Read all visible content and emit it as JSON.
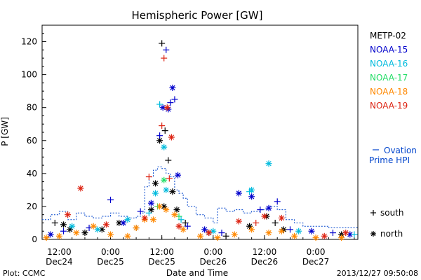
{
  "chart_data": {
    "type": "scatter",
    "title": "Hemispheric Power [GW]",
    "ylabel": "P [GW]",
    "xlabel": "Date and Time",
    "ylim": [
      0,
      130
    ],
    "xlim": [
      "2013-12-24 08:00",
      "2013-12-27 09:50"
    ],
    "y_ticks": [
      0,
      20,
      40,
      60,
      80,
      100,
      120
    ],
    "x_ticks": [
      {
        "time": "2013-12-24 12:00",
        "top": "12:00",
        "bottom": "Dec24"
      },
      {
        "time": "2013-12-25 00:00",
        "top": "0:00",
        "bottom": "Dec25"
      },
      {
        "time": "2013-12-25 12:00",
        "top": "12:00",
        "bottom": "Dec25"
      },
      {
        "time": "2013-12-26 00:00",
        "top": "0:00",
        "bottom": "Dec26"
      },
      {
        "time": "2013-12-26 12:00",
        "top": "12:00",
        "bottom": "Dec26"
      },
      {
        "time": "2013-12-27 00:00",
        "top": "0:00",
        "bottom": "Dec27"
      }
    ],
    "marker_legend": [
      {
        "symbol": "+",
        "label": "south"
      },
      {
        "symbol": "*",
        "label": "north"
      }
    ],
    "series": [
      {
        "name": "METP-02",
        "color": "#000000",
        "points": [
          [
            "2013-12-24 11:00",
            10,
            "+"
          ],
          [
            "2013-12-24 13:00",
            9,
            "*"
          ],
          [
            "2013-12-24 14:30",
            6,
            "*"
          ],
          [
            "2013-12-24 18:00",
            4,
            "*"
          ],
          [
            "2013-12-24 22:00",
            6,
            "*"
          ],
          [
            "2013-12-25 02:00",
            10,
            "*"
          ],
          [
            "2013-12-25 06:00",
            7,
            "+"
          ],
          [
            "2013-12-25 09:30",
            18,
            "*"
          ],
          [
            "2013-12-25 10:30",
            34,
            "*"
          ],
          [
            "2013-12-25 11:30",
            60,
            "*"
          ],
          [
            "2013-12-25 12:00",
            119,
            "+"
          ],
          [
            "2013-12-25 12:30",
            20,
            "*"
          ],
          [
            "2013-12-25 12:45",
            66,
            "+"
          ],
          [
            "2013-12-25 13:30",
            48,
            "+"
          ],
          [
            "2013-12-25 14:30",
            29,
            "*"
          ],
          [
            "2013-12-25 15:30",
            18,
            "*"
          ],
          [
            "2013-12-25 17:30",
            10,
            "+"
          ],
          [
            "2013-12-25 23:00",
            4,
            "*"
          ],
          [
            "2013-12-26 03:00",
            2,
            "+"
          ],
          [
            "2013-12-26 08:30",
            8,
            "*"
          ],
          [
            "2013-12-26 12:30",
            14,
            "*"
          ],
          [
            "2013-12-26 14:30",
            10,
            "+"
          ],
          [
            "2013-12-26 16:30",
            6,
            "*"
          ],
          [
            "2013-12-27 06:00",
            3,
            "*"
          ]
        ]
      },
      {
        "name": "NOAA-15",
        "color": "#0000cc",
        "points": [
          [
            "2013-12-24 10:00",
            3,
            "*"
          ],
          [
            "2013-12-24 13:00",
            5,
            "+"
          ],
          [
            "2013-12-24 19:00",
            7,
            "+"
          ],
          [
            "2013-12-25 00:00",
            24,
            "+"
          ],
          [
            "2013-12-25 03:00",
            10,
            "*"
          ],
          [
            "2013-12-25 07:00",
            17,
            "+"
          ],
          [
            "2013-12-25 09:30",
            22,
            "*"
          ],
          [
            "2013-12-25 11:30",
            63,
            "+"
          ],
          [
            "2013-12-25 12:15",
            80,
            "*"
          ],
          [
            "2013-12-25 13:00",
            115,
            "+"
          ],
          [
            "2013-12-25 13:30",
            79,
            "*"
          ],
          [
            "2013-12-25 14:00",
            83,
            "+"
          ],
          [
            "2013-12-25 14:30",
            92,
            "*"
          ],
          [
            "2013-12-25 15:00",
            85,
            "+"
          ],
          [
            "2013-12-25 15:45",
            39,
            "*"
          ],
          [
            "2013-12-25 18:00",
            8,
            "+"
          ],
          [
            "2013-12-25 22:00",
            6,
            "*"
          ],
          [
            "2013-12-26 02:00",
            4,
            "+"
          ],
          [
            "2013-12-26 06:00",
            28,
            "*"
          ],
          [
            "2013-12-26 09:00",
            26,
            "*"
          ],
          [
            "2013-12-26 11:00",
            18,
            "+"
          ],
          [
            "2013-12-26 13:00",
            19,
            "*"
          ],
          [
            "2013-12-26 15:00",
            23,
            "+"
          ],
          [
            "2013-12-26 18:00",
            6,
            "+"
          ],
          [
            "2013-12-26 23:00",
            5,
            "*"
          ],
          [
            "2013-12-27 04:00",
            4,
            "+"
          ],
          [
            "2013-12-27 08:00",
            3,
            "*"
          ]
        ]
      },
      {
        "name": "NOAA-16",
        "color": "#00bbdd",
        "points": [
          [
            "2013-12-24 15:00",
            8,
            "*"
          ],
          [
            "2013-12-24 21:00",
            6,
            "*"
          ],
          [
            "2013-12-25 04:00",
            12,
            "*"
          ],
          [
            "2013-12-25 09:00",
            16,
            "+"
          ],
          [
            "2013-12-25 10:30",
            28,
            "*"
          ],
          [
            "2013-12-25 11:30",
            82,
            "+"
          ],
          [
            "2013-12-25 12:30",
            56,
            "*"
          ],
          [
            "2013-12-25 13:00",
            30,
            "*"
          ],
          [
            "2013-12-25 16:30",
            12,
            "+"
          ],
          [
            "2013-12-26 00:00",
            5,
            "*"
          ],
          [
            "2013-12-26 08:30",
            29,
            "+"
          ],
          [
            "2013-12-26 09:00",
            30,
            "*"
          ],
          [
            "2013-12-26 13:00",
            46,
            "*"
          ],
          [
            "2013-12-26 20:00",
            5,
            "*"
          ],
          [
            "2013-12-27 09:00",
            3,
            "+"
          ]
        ]
      },
      {
        "name": "NOAA-17",
        "color": "#22dd66",
        "points": [
          [
            "2013-12-25 11:00",
            20,
            "+"
          ],
          [
            "2013-12-25 12:30",
            36,
            "*"
          ],
          [
            "2013-12-25 16:00",
            14,
            "+"
          ]
        ]
      },
      {
        "name": "NOAA-18",
        "color": "#ff8800",
        "points": [
          [
            "2013-12-24 09:00",
            1,
            "*"
          ],
          [
            "2013-12-24 12:00",
            2,
            "*"
          ],
          [
            "2013-12-24 16:00",
            4,
            "*"
          ],
          [
            "2013-12-24 20:00",
            8,
            "*"
          ],
          [
            "2013-12-25 00:00",
            3,
            "*"
          ],
          [
            "2013-12-25 04:00",
            2,
            "*"
          ],
          [
            "2013-12-25 06:00",
            7,
            "*"
          ],
          [
            "2013-12-25 08:00",
            12,
            "*"
          ],
          [
            "2013-12-25 10:00",
            12,
            "*"
          ],
          [
            "2013-12-25 11:30",
            20,
            "*"
          ],
          [
            "2013-12-25 13:00",
            18,
            "*"
          ],
          [
            "2013-12-25 15:00",
            15,
            "*"
          ],
          [
            "2013-12-25 17:00",
            6,
            "*"
          ],
          [
            "2013-12-25 21:00",
            2,
            "*"
          ],
          [
            "2013-12-26 01:00",
            1,
            "*"
          ],
          [
            "2013-12-26 05:00",
            3,
            "*"
          ],
          [
            "2013-12-26 09:00",
            6,
            "*"
          ],
          [
            "2013-12-26 13:00",
            4,
            "*"
          ],
          [
            "2013-12-26 16:00",
            5,
            "*"
          ],
          [
            "2013-12-26 19:00",
            2,
            "*"
          ],
          [
            "2013-12-27 00:00",
            1,
            "*"
          ],
          [
            "2013-12-27 06:00",
            1,
            "*"
          ]
        ]
      },
      {
        "name": "NOAA-19",
        "color": "#dd2211",
        "points": [
          [
            "2013-12-24 17:00",
            31,
            "*"
          ],
          [
            "2013-12-24 14:00",
            15,
            "*"
          ],
          [
            "2013-12-24 23:00",
            9,
            "*"
          ],
          [
            "2013-12-25 08:00",
            13,
            "*"
          ],
          [
            "2013-12-25 09:00",
            38,
            "+"
          ],
          [
            "2013-12-25 12:00",
            69,
            "+"
          ],
          [
            "2013-12-25 12:30",
            110,
            "+"
          ],
          [
            "2013-12-25 13:15",
            80,
            "*"
          ],
          [
            "2013-12-25 13:45",
            37,
            "+"
          ],
          [
            "2013-12-25 14:15",
            62,
            "*"
          ],
          [
            "2013-12-25 16:00",
            8,
            "*"
          ],
          [
            "2013-12-25 23:00",
            4,
            "*"
          ],
          [
            "2013-12-26 06:00",
            11,
            "*"
          ],
          [
            "2013-12-26 10:00",
            10,
            "+"
          ],
          [
            "2013-12-26 12:00",
            14,
            "*"
          ],
          [
            "2013-12-26 16:00",
            13,
            "*"
          ],
          [
            "2013-12-27 02:00",
            2,
            "*"
          ],
          [
            "2013-12-27 07:00",
            4,
            "*"
          ]
        ]
      }
    ],
    "ovation_steps": [
      [
        "2013-12-24 08:00",
        12
      ],
      [
        "2013-12-24 10:00",
        15
      ],
      [
        "2013-12-24 12:00",
        17
      ],
      [
        "2013-12-24 14:00",
        12
      ],
      [
        "2013-12-24 16:00",
        16
      ],
      [
        "2013-12-24 18:00",
        14
      ],
      [
        "2013-12-24 20:00",
        13
      ],
      [
        "2013-12-24 22:00",
        14
      ],
      [
        "2013-12-25 00:00",
        16
      ],
      [
        "2013-12-25 02:00",
        14
      ],
      [
        "2013-12-25 04:00",
        13
      ],
      [
        "2013-12-25 06:00",
        14
      ],
      [
        "2013-12-25 07:00",
        16
      ],
      [
        "2013-12-25 08:00",
        32
      ],
      [
        "2013-12-25 09:00",
        38
      ],
      [
        "2013-12-25 10:00",
        42
      ],
      [
        "2013-12-25 11:00",
        44
      ],
      [
        "2013-12-25 12:00",
        43
      ],
      [
        "2013-12-25 13:00",
        40
      ],
      [
        "2013-12-25 14:00",
        38
      ],
      [
        "2013-12-25 15:00",
        30
      ],
      [
        "2013-12-25 16:00",
        28
      ],
      [
        "2013-12-25 17:00",
        25
      ],
      [
        "2013-12-25 18:00",
        20
      ],
      [
        "2013-12-25 20:00",
        15
      ],
      [
        "2013-12-25 22:00",
        13
      ],
      [
        "2013-12-26 00:00",
        10
      ],
      [
        "2013-12-26 01:00",
        19
      ],
      [
        "2013-12-26 03:00",
        17
      ],
      [
        "2013-12-26 05:00",
        18
      ],
      [
        "2013-12-26 07:00",
        16
      ],
      [
        "2013-12-26 09:00",
        17
      ],
      [
        "2013-12-26 11:00",
        18
      ],
      [
        "2013-12-26 13:00",
        20
      ],
      [
        "2013-12-26 15:00",
        18
      ],
      [
        "2013-12-26 17:00",
        12
      ],
      [
        "2013-12-26 19:00",
        10
      ],
      [
        "2013-12-26 21:00",
        8
      ],
      [
        "2013-12-27 00:00",
        8
      ],
      [
        "2013-12-27 03:00",
        7
      ],
      [
        "2013-12-27 06:00",
        7
      ],
      [
        "2013-12-27 09:50",
        7
      ]
    ],
    "model": {
      "name_line1": "Ovation",
      "name_line2": "Prime HPI",
      "color": "#0044cc"
    }
  },
  "footer": {
    "plot_credit": "Plot: CCMC",
    "timestamp": "2013/12/27 09:50:08"
  }
}
